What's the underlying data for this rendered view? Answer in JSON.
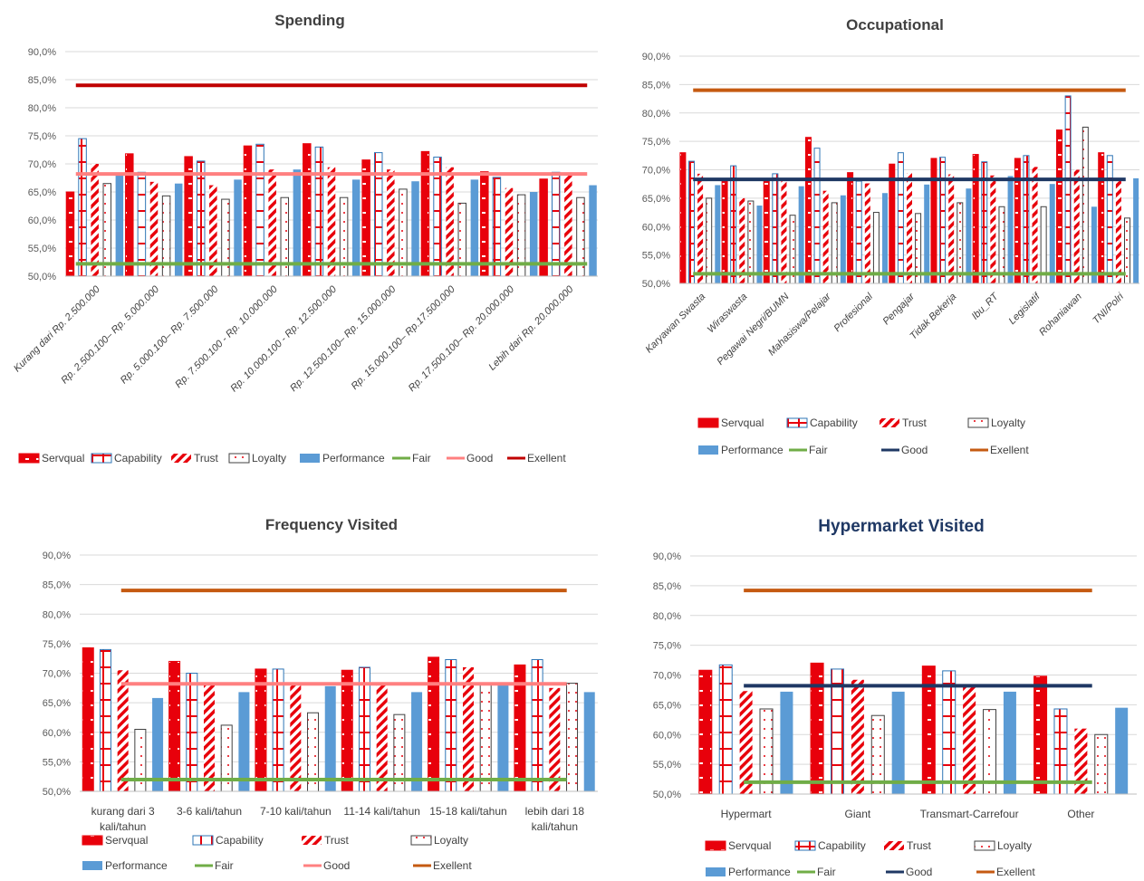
{
  "series_colors": {
    "Servqual": "#e8000b",
    "Capability": "#2e75b6",
    "Trust": "#e8000b",
    "Loyalty": "#404040",
    "Performance": "#5b9bd5",
    "Fair": "#70ad47",
    "Good_spending": "#ff8080",
    "Good_dark": "#1f3864",
    "Exellent_spending": "#c00000",
    "Exellent_other": "#c55a11"
  },
  "chart_data": [
    {
      "type": "bar",
      "title": "Spending",
      "xlabel": "",
      "ylabel": "",
      "ylim": [
        50,
        90
      ],
      "yticks": [
        "50,0%",
        "55,0%",
        "60,0%",
        "65,0%",
        "70,0%",
        "75,0%",
        "80,0%",
        "85,0%",
        "90,0%"
      ],
      "grid": true,
      "legend_position": "bottom",
      "categories": [
        "Kurang dari Rp. 2.500.000",
        "Rp. 2.500.100– Rp. 5.000.000",
        "Rp. 5.000.100– Rp. 7.500.000",
        "Rp. 7.500.100 - Rp. 10.000.000",
        "Rp. 10.000.100 - Rp. 12.500.000",
        "Rp. 12.500.100– Rp. 15.000.000",
        "Rp. 15.000.100– Rp.17.500.000",
        "Rp. 17.500.100– Rp. 20.000.000",
        "Lebih dari Rp. 20.000.000"
      ],
      "series": [
        {
          "name": "Servqual",
          "values": [
            65.0,
            71.8,
            71.3,
            73.2,
            73.6,
            70.7,
            72.2,
            68.6,
            67.3
          ]
        },
        {
          "name": "Capability",
          "values": [
            74.5,
            68.5,
            70.5,
            73.5,
            73.0,
            72.0,
            71.2,
            67.6,
            68.5
          ]
        },
        {
          "name": "Trust",
          "values": [
            70.0,
            66.8,
            66.2,
            69.0,
            69.4,
            69.0,
            69.4,
            65.7,
            68.0
          ]
        },
        {
          "name": "Loyalty",
          "values": [
            66.5,
            64.3,
            63.7,
            64.0,
            64.0,
            65.5,
            63.0,
            64.5,
            64.0
          ]
        },
        {
          "name": "Performance",
          "values": [
            68.3,
            66.5,
            67.2,
            69.0,
            67.2,
            66.9,
            67.2,
            65.0,
            66.2
          ]
        }
      ],
      "reference_lines": [
        {
          "name": "Fair",
          "value": 52.2
        },
        {
          "name": "Good",
          "value": 68.2
        },
        {
          "name": "Exellent",
          "value": 84.0
        }
      ],
      "legend": [
        "Servqual",
        "Capability",
        "Trust",
        "Loyalty",
        "Performance",
        "Fair",
        "Good",
        "Exellent"
      ]
    },
    {
      "type": "bar",
      "title": "Occupational",
      "xlabel": "",
      "ylabel": "",
      "ylim": [
        50,
        90
      ],
      "yticks": [
        "50,0%",
        "55,0%",
        "60,0%",
        "65,0%",
        "70,0%",
        "75,0%",
        "80,0%",
        "85,0%",
        "90,0%"
      ],
      "grid": true,
      "legend_position": "bottom",
      "categories": [
        "Karyawan Swasta",
        "Wiraswasta",
        "Pegawai Negri/BUMN",
        "Mahasiswa/Pelajar",
        "Profesional",
        "Pengajar",
        "Tidak Bekerja",
        "Ibu_RT",
        "Legislatif",
        "Rohaniawan",
        "TNI/Polri"
      ],
      "series": [
        {
          "name": "Servqual",
          "values": [
            73.0,
            68.0,
            68.0,
            75.7,
            69.5,
            71.0,
            72.0,
            72.7,
            72.0,
            77.0,
            73.0
          ]
        },
        {
          "name": "Capability",
          "values": [
            71.5,
            70.7,
            69.3,
            73.8,
            68.0,
            73.0,
            72.2,
            71.4,
            72.5,
            83.0,
            72.5
          ]
        },
        {
          "name": "Trust",
          "values": [
            69.3,
            65.0,
            68.5,
            66.3,
            67.6,
            69.4,
            69.2,
            69.0,
            70.5,
            70.0,
            68.0
          ]
        },
        {
          "name": "Loyalty",
          "values": [
            65.0,
            64.5,
            62.0,
            64.2,
            62.5,
            62.3,
            64.2,
            63.5,
            63.5,
            77.5,
            61.5
          ]
        },
        {
          "name": "Performance",
          "values": [
            67.3,
            63.7,
            67.1,
            65.5,
            65.9,
            67.4,
            66.7,
            68.9,
            67.5,
            63.5,
            68.5
          ]
        }
      ],
      "reference_lines": [
        {
          "name": "Fair",
          "value": 51.7
        },
        {
          "name": "Good",
          "value": 68.3
        },
        {
          "name": "Exellent",
          "value": 84.0
        }
      ],
      "legend": [
        "Servqual",
        "Capability",
        "Trust",
        "Loyalty",
        "Performance",
        "Fair",
        "Good",
        "Exellent"
      ]
    },
    {
      "type": "bar",
      "title": "Frequency Visited",
      "xlabel": "",
      "ylabel": "",
      "ylim": [
        50,
        90
      ],
      "yticks": [
        "50,0%",
        "55,0%",
        "60,0%",
        "65,0%",
        "70,0%",
        "75,0%",
        "80,0%",
        "85,0%",
        "90,0%"
      ],
      "grid": true,
      "legend_position": "bottom",
      "categories": [
        "kurang dari 3 kali/tahun",
        "3-6 kali/tahun",
        "7-10 kali/tahun",
        "11-14 kali/tahun",
        "15-18 kali/tahun",
        "lebih dari 18 kali/tahun"
      ],
      "series": [
        {
          "name": "Servqual",
          "values": [
            74.3,
            72.0,
            70.7,
            70.5,
            72.7,
            71.4
          ]
        },
        {
          "name": "Capability",
          "values": [
            74.0,
            70.0,
            70.7,
            71.0,
            72.3,
            72.3
          ]
        },
        {
          "name": "Trust",
          "values": [
            70.5,
            68.3,
            68.2,
            68.2,
            71.0,
            67.5
          ]
        },
        {
          "name": "Loyalty",
          "values": [
            60.5,
            61.2,
            63.3,
            63.0,
            68.3,
            68.3
          ]
        },
        {
          "name": "Performance",
          "values": [
            65.8,
            66.8,
            67.8,
            66.8,
            68.2,
            66.8
          ]
        }
      ],
      "reference_lines": [
        {
          "name": "Fair",
          "value": 52.0
        },
        {
          "name": "Good",
          "value": 68.2
        },
        {
          "name": "Exellent",
          "value": 84.0
        }
      ],
      "legend": [
        "Servqual",
        "Capability",
        "Trust",
        "Loyalty",
        "Performance",
        "Fair",
        "Good",
        "Exellent"
      ]
    },
    {
      "type": "bar",
      "title": "Hypermarket Visited",
      "xlabel": "",
      "ylabel": "",
      "ylim": [
        50,
        90
      ],
      "yticks": [
        "50,0%",
        "55,0%",
        "60,0%",
        "65,0%",
        "70,0%",
        "75,0%",
        "80,0%",
        "85,0%",
        "90,0%"
      ],
      "grid": true,
      "legend_position": "bottom",
      "categories": [
        "Hypermart",
        "Giant",
        "Transmart-Carrefour",
        "Other"
      ],
      "series": [
        {
          "name": "Servqual",
          "values": [
            70.8,
            72.0,
            71.5,
            69.8
          ]
        },
        {
          "name": "Capability",
          "values": [
            71.7,
            71.0,
            70.7,
            64.3
          ]
        },
        {
          "name": "Trust",
          "values": [
            67.3,
            69.2,
            68.0,
            61.0
          ]
        },
        {
          "name": "Loyalty",
          "values": [
            64.3,
            63.2,
            64.2,
            60.0
          ]
        },
        {
          "name": "Performance",
          "values": [
            67.2,
            67.2,
            67.2,
            64.5
          ]
        }
      ],
      "reference_lines": [
        {
          "name": "Fair",
          "value": 52.0
        },
        {
          "name": "Good",
          "value": 68.2
        },
        {
          "name": "Exellent",
          "value": 84.2
        }
      ],
      "legend": [
        "Servqual",
        "Capability",
        "Trust",
        "Loyalty",
        "Performance",
        "Fair",
        "Good",
        "Exellent"
      ]
    }
  ]
}
